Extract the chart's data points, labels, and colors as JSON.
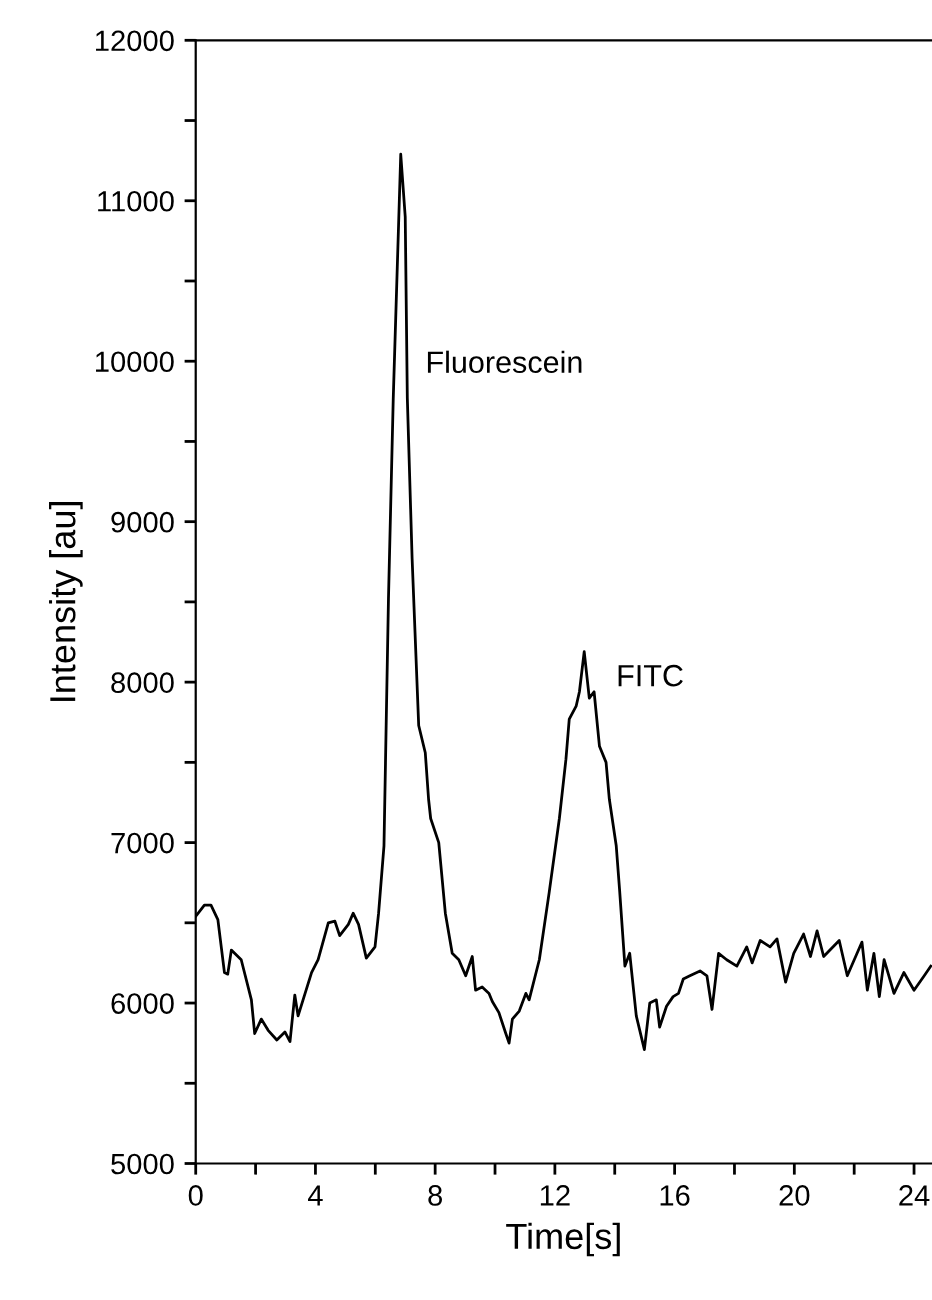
{
  "chart_data": {
    "type": "line",
    "xlabel": "Time[s]",
    "ylabel": "Intensity [au]",
    "annotations": [
      "Fluorescein",
      "FITC"
    ],
    "xlim": [
      0,
      24.6
    ],
    "xticks": [
      0,
      {
        "value": 2,
        "label": null
      },
      4,
      {
        "value": 6,
        "label": null
      },
      8,
      {
        "value": 10,
        "label": null
      },
      12,
      {
        "value": 14,
        "label": null
      },
      16,
      {
        "value": 18,
        "label": null
      },
      20,
      {
        "value": 22,
        "label": null
      },
      24
    ],
    "ylim": [
      5000,
      12000
    ],
    "yticks": [
      5000,
      {
        "value": 5500,
        "label": null
      },
      6000,
      {
        "value": 6500,
        "label": null
      },
      7000,
      {
        "value": 7500,
        "label": null
      },
      8000,
      {
        "value": 8500,
        "label": null
      },
      9000,
      {
        "value": 9500,
        "label": null
      },
      10000,
      {
        "value": 10500,
        "label": null
      },
      11000,
      {
        "value": 11500,
        "label": null
      },
      12000
    ],
    "marker": "none",
    "line_style": "solid",
    "series": [
      {
        "color": "#000000",
        "x": [
          0,
          0.29,
          0.51,
          0.74,
          0.96,
          1.07,
          1.19,
          1.52,
          1.86,
          1.97,
          2.19,
          2.42,
          2.71,
          2.98,
          3.15,
          3.31,
          3.42,
          3.87,
          4.09,
          4.43,
          4.65,
          4.81,
          5.1,
          5.26,
          5.44,
          5.7,
          5.99,
          6.11,
          6.29,
          6.44,
          6.6,
          6.85,
          7.0,
          7.07,
          7.23,
          7.45,
          7.67,
          7.78,
          7.85,
          8.12,
          8.34,
          8.57,
          8.79,
          9.02,
          9.24,
          9.35,
          9.57,
          9.8,
          9.91,
          10.13,
          10.36,
          10.47,
          10.58,
          10.81,
          11.03,
          11.14,
          11.48,
          11.81,
          12.15,
          12.37,
          12.48,
          12.71,
          12.82,
          12.98,
          13.15,
          13.31,
          13.49,
          13.71,
          13.82,
          14.05,
          14.16,
          14.34,
          14.5,
          14.72,
          14.99,
          15.17,
          15.39,
          15.5,
          15.73,
          15.95,
          16.13,
          16.29,
          16.51,
          16.85,
          17.08,
          17.25,
          17.47,
          17.74,
          18.08,
          18.41,
          18.59,
          18.86,
          19.19,
          19.42,
          19.71,
          19.98,
          20.31,
          20.54,
          20.76,
          20.98,
          21.5,
          21.77,
          22.26,
          22.44,
          22.66,
          22.84,
          23.0,
          23.33,
          23.66,
          24.0,
          24.34,
          24.56
        ],
        "values": [
          6540,
          6610,
          6610,
          6520,
          6190,
          6180,
          6330,
          6270,
          6020,
          5810,
          5900,
          5830,
          5770,
          5820,
          5760,
          6050,
          5920,
          6190,
          6270,
          6500,
          6510,
          6420,
          6490,
          6560,
          6490,
          6280,
          6350,
          6560,
          6980,
          8520,
          9770,
          11290,
          10900,
          9770,
          8770,
          7730,
          7560,
          7270,
          7150,
          7000,
          6560,
          6310,
          6270,
          6170,
          6290,
          6080,
          6100,
          6060,
          6010,
          5940,
          5810,
          5750,
          5900,
          5950,
          6060,
          6020,
          6270,
          6690,
          7150,
          7520,
          7770,
          7850,
          7940,
          8190,
          7900,
          7940,
          7600,
          7500,
          7270,
          6980,
          6710,
          6230,
          6310,
          5920,
          5710,
          6000,
          6020,
          5850,
          5980,
          6040,
          6060,
          6150,
          6170,
          6200,
          6170,
          5960,
          6310,
          6270,
          6230,
          6350,
          6250,
          6390,
          6350,
          6400,
          6130,
          6310,
          6430,
          6290,
          6450,
          6290,
          6390,
          6170,
          6380,
          6080,
          6310,
          6040,
          6270,
          6060,
          6190,
          6080,
          6170,
          6230
        ]
      }
    ]
  }
}
